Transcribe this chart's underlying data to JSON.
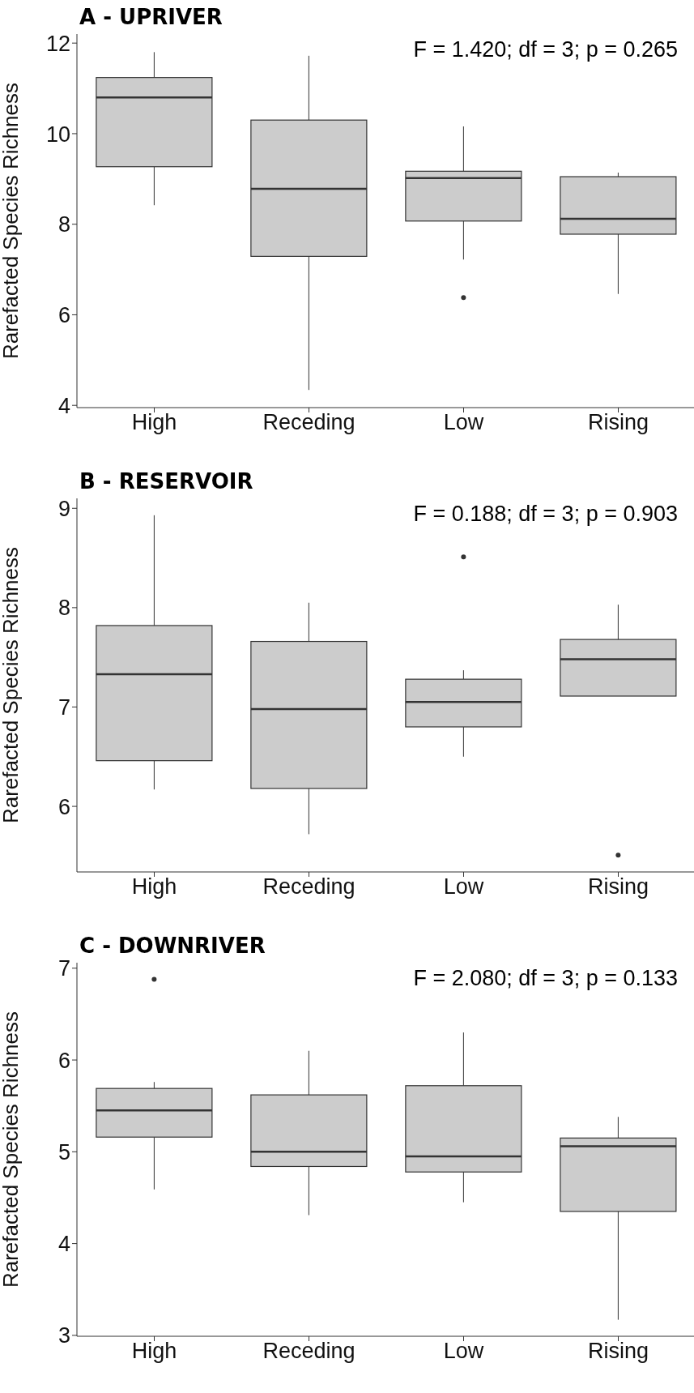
{
  "chart_data": [
    {
      "type": "box",
      "title": "A - UPRIVER",
      "ylabel": "Rarefacted Species Richness",
      "categories": [
        "High",
        "Receding",
        "Low",
        "Rising"
      ],
      "ylim": [
        3.95,
        12.2
      ],
      "yticks": [
        4,
        6,
        8,
        10,
        12
      ],
      "annotations": [
        "F = 1.420; df = 3; p = 0.265"
      ],
      "series": [
        {
          "color": "#cccccc",
          "boxes": [
            {
              "low": 8.42,
              "q1": 9.27,
              "median": 10.8,
              "q3": 11.24,
              "high": 11.8
            },
            {
              "low": 4.34,
              "q1": 7.29,
              "median": 8.78,
              "q3": 10.3,
              "high": 11.72
            },
            {
              "low": 7.22,
              "q1": 8.07,
              "median": 9.02,
              "q3": 9.17,
              "high": 10.16,
              "outliers": [
                6.38
              ]
            },
            {
              "low": 6.46,
              "q1": 7.78,
              "median": 8.12,
              "q3": 9.05,
              "high": 9.14
            }
          ]
        }
      ]
    },
    {
      "type": "box",
      "title": "B - RESERVOIR",
      "ylabel": "Rarefacted Species Richness",
      "categories": [
        "High",
        "Receding",
        "Low",
        "Rising"
      ],
      "ylim": [
        5.34,
        9.1
      ],
      "yticks": [
        6,
        7,
        8,
        9
      ],
      "annotations": [
        "F = 0.188; df = 3; p = 0.903"
      ],
      "series": [
        {
          "color": "#cccccc",
          "boxes": [
            {
              "low": 6.17,
              "q1": 6.46,
              "median": 7.33,
              "q3": 7.82,
              "high": 8.93
            },
            {
              "low": 5.72,
              "q1": 6.18,
              "median": 6.98,
              "q3": 7.66,
              "high": 8.05
            },
            {
              "low": 6.5,
              "q1": 6.8,
              "median": 7.05,
              "q3": 7.28,
              "high": 7.37,
              "outliers": [
                8.51
              ]
            },
            {
              "low": 7.11,
              "q1": 7.11,
              "median": 7.48,
              "q3": 7.68,
              "high": 8.03,
              "outliers": [
                5.51
              ]
            }
          ]
        }
      ]
    },
    {
      "type": "box",
      "title": "C - DOWNRIVER",
      "ylabel": "Rarefacted Species Richness",
      "categories": [
        "High",
        "Receding",
        "Low",
        "Rising"
      ],
      "ylim": [
        2.99,
        7.06
      ],
      "yticks": [
        3,
        4,
        5,
        6,
        7
      ],
      "annotations": [
        "F = 2.080; df = 3; p = 0.133"
      ],
      "series": [
        {
          "color": "#cccccc",
          "boxes": [
            {
              "low": 4.59,
              "q1": 5.16,
              "median": 5.45,
              "q3": 5.69,
              "high": 5.76,
              "outliers": [
                6.88
              ]
            },
            {
              "low": 4.31,
              "q1": 4.84,
              "median": 5.0,
              "q3": 5.62,
              "high": 6.1
            },
            {
              "low": 4.45,
              "q1": 4.78,
              "median": 4.95,
              "q3": 5.72,
              "high": 6.3
            },
            {
              "low": 3.17,
              "q1": 4.35,
              "median": 5.06,
              "q3": 5.15,
              "high": 5.38
            }
          ]
        }
      ]
    }
  ]
}
